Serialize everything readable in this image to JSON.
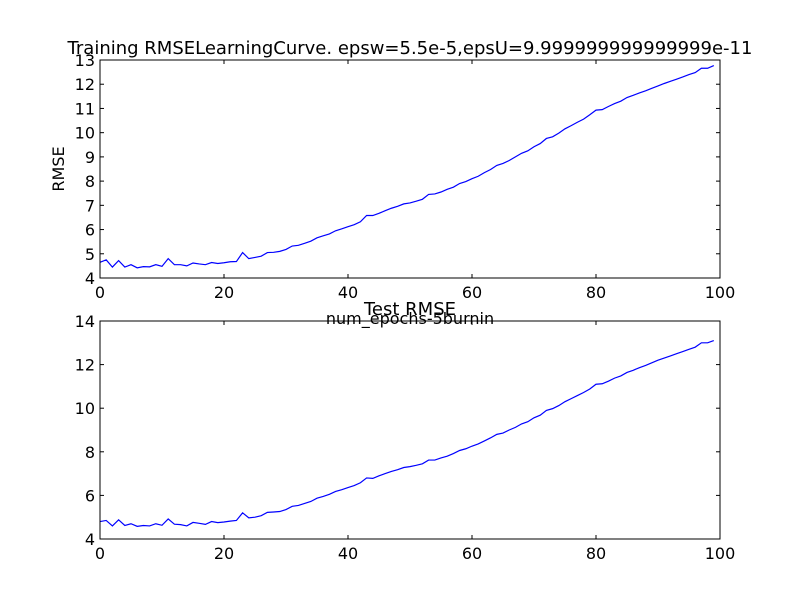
{
  "chart_data": [
    {
      "type": "line",
      "title": "Training RMSELearningCurve. epsw=5.5e-5,epsU=9.999999999999999e-11",
      "xlabel": "num_epochs-5burnin",
      "ylabel": "RMSE",
      "xlim": [
        0,
        100
      ],
      "ylim": [
        4,
        13
      ],
      "x_ticks": [
        "0",
        "20",
        "40",
        "60",
        "80",
        "100"
      ],
      "y_ticks": [
        "4",
        "5",
        "6",
        "7",
        "8",
        "9",
        "10",
        "11",
        "12",
        "13"
      ],
      "grid": false,
      "line_color": "#0000ff",
      "series": [
        {
          "x": [
            0,
            1,
            2,
            3,
            4,
            5,
            6,
            7,
            8,
            9,
            10,
            11,
            12,
            13,
            14,
            15,
            16,
            17,
            18,
            19,
            20,
            21,
            22,
            23,
            24,
            25,
            26,
            27,
            28,
            29,
            30,
            31,
            32,
            33,
            34,
            35,
            36,
            37,
            38,
            39,
            40,
            41,
            42,
            43,
            44,
            45,
            46,
            47,
            48,
            49,
            50,
            51,
            52,
            53,
            54,
            55,
            56,
            57,
            58,
            59,
            60,
            61,
            62,
            63,
            64,
            65,
            66,
            67,
            68,
            69,
            70,
            71,
            72,
            73,
            74,
            75,
            76,
            77,
            78,
            79,
            80,
            81,
            82,
            83,
            84,
            85,
            86,
            87,
            88,
            89,
            90,
            91,
            92,
            93,
            94,
            95,
            96,
            97,
            98,
            99
          ],
          "values": [
            4.65,
            4.75,
            4.45,
            4.72,
            4.45,
            4.55,
            4.42,
            4.47,
            4.46,
            4.55,
            4.48,
            4.8,
            4.55,
            4.55,
            4.5,
            4.62,
            4.58,
            4.55,
            4.64,
            4.6,
            4.63,
            4.67,
            4.68,
            5.05,
            4.8,
            4.85,
            4.9,
            5.05,
            5.06,
            5.1,
            5.18,
            5.32,
            5.35,
            5.43,
            5.52,
            5.66,
            5.74,
            5.82,
            5.95,
            6.03,
            6.12,
            6.2,
            6.32,
            6.58,
            6.58,
            6.67,
            6.78,
            6.88,
            6.96,
            7.06,
            7.1,
            7.17,
            7.25,
            7.45,
            7.47,
            7.55,
            7.66,
            7.75,
            7.9,
            7.98,
            8.1,
            8.2,
            8.35,
            8.48,
            8.65,
            8.73,
            8.85,
            9.0,
            9.15,
            9.25,
            9.42,
            9.55,
            9.76,
            9.83,
            9.98,
            10.16,
            10.29,
            10.43,
            10.56,
            10.74,
            10.93,
            10.95,
            11.08,
            11.2,
            11.3,
            11.45,
            11.54,
            11.64,
            11.73,
            11.83,
            11.93,
            12.03,
            12.12,
            12.21,
            12.3,
            12.4,
            12.48,
            12.66,
            12.66,
            12.77
          ]
        }
      ]
    },
    {
      "type": "line",
      "title": "Test RMSE",
      "xlabel": "",
      "ylabel": "",
      "xlim": [
        0,
        100
      ],
      "ylim": [
        4,
        14
      ],
      "x_ticks": [
        "0",
        "20",
        "40",
        "60",
        "80",
        "100"
      ],
      "y_ticks": [
        "4",
        "6",
        "8",
        "10",
        "12",
        "14"
      ],
      "grid": false,
      "line_color": "#0000ff",
      "series": [
        {
          "x": [
            0,
            1,
            2,
            3,
            4,
            5,
            6,
            7,
            8,
            9,
            10,
            11,
            12,
            13,
            14,
            15,
            16,
            17,
            18,
            19,
            20,
            21,
            22,
            23,
            24,
            25,
            26,
            27,
            28,
            29,
            30,
            31,
            32,
            33,
            34,
            35,
            36,
            37,
            38,
            39,
            40,
            41,
            42,
            43,
            44,
            45,
            46,
            47,
            48,
            49,
            50,
            51,
            52,
            53,
            54,
            55,
            56,
            57,
            58,
            59,
            60,
            61,
            62,
            63,
            64,
            65,
            66,
            67,
            68,
            69,
            70,
            71,
            72,
            73,
            74,
            75,
            76,
            77,
            78,
            79,
            80,
            81,
            82,
            83,
            84,
            85,
            86,
            87,
            88,
            89,
            90,
            91,
            92,
            93,
            94,
            95,
            96,
            97,
            98,
            99
          ],
          "values": [
            4.8,
            4.85,
            4.6,
            4.88,
            4.62,
            4.7,
            4.58,
            4.62,
            4.6,
            4.7,
            4.63,
            4.92,
            4.68,
            4.66,
            4.6,
            4.76,
            4.72,
            4.67,
            4.8,
            4.75,
            4.78,
            4.82,
            4.85,
            5.2,
            4.97,
            5.0,
            5.07,
            5.22,
            5.24,
            5.26,
            5.35,
            5.5,
            5.54,
            5.63,
            5.72,
            5.87,
            5.95,
            6.05,
            6.18,
            6.26,
            6.36,
            6.45,
            6.58,
            6.8,
            6.78,
            6.9,
            7.0,
            7.1,
            7.18,
            7.28,
            7.32,
            7.38,
            7.45,
            7.62,
            7.62,
            7.72,
            7.8,
            7.92,
            8.06,
            8.14,
            8.26,
            8.36,
            8.5,
            8.64,
            8.8,
            8.86,
            9.0,
            9.12,
            9.28,
            9.38,
            9.56,
            9.68,
            9.9,
            9.98,
            10.12,
            10.3,
            10.44,
            10.58,
            10.72,
            10.88,
            11.1,
            11.12,
            11.24,
            11.38,
            11.48,
            11.64,
            11.74,
            11.86,
            11.96,
            12.08,
            12.2,
            12.3,
            12.4,
            12.5,
            12.6,
            12.7,
            12.8,
            13.0,
            13.0,
            13.1
          ]
        }
      ]
    }
  ]
}
